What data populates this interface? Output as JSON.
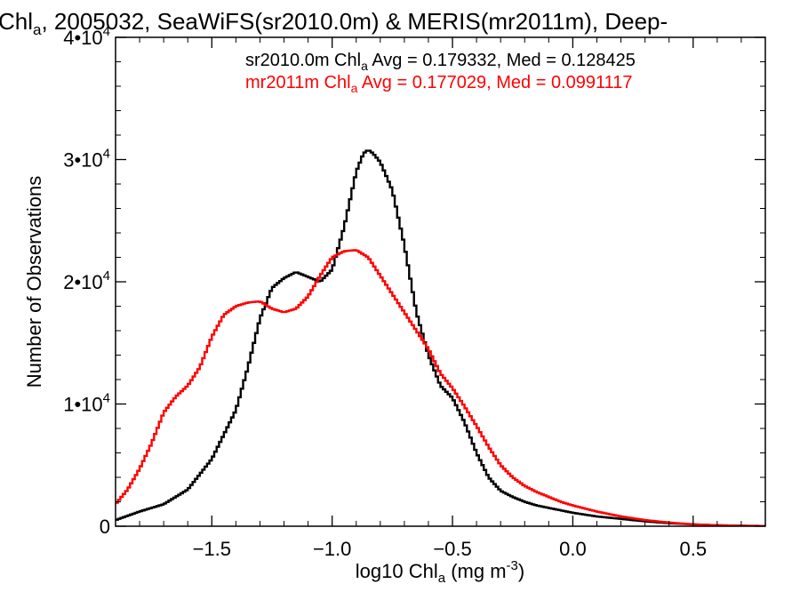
{
  "chart_data": {
    "type": "line",
    "title": {
      "pre": "Chl",
      "sub": "a",
      "post": ", 2005032, SeaWiFS(sr2010.0m) & MERIS(mr2011m), Deep-"
    },
    "xlabel": {
      "pre": "log10 Chl",
      "sub": "a",
      "post": " (mg m",
      "sup": "-3",
      "end": ")"
    },
    "ylabel": "Number of Observations",
    "xlim": [
      -1.9,
      0.8
    ],
    "ylim": [
      0,
      40000
    ],
    "x_ticks": [
      {
        "value": -1.5,
        "label": "−1.5"
      },
      {
        "value": -1.0,
        "label": "−1.0"
      },
      {
        "value": -0.5,
        "label": "−0.5"
      },
      {
        "value": 0.0,
        "label": "0.0"
      },
      {
        "value": 0.5,
        "label": "0.5"
      }
    ],
    "y_ticks": [
      {
        "value": 0,
        "mant": "0",
        "exp": ""
      },
      {
        "value": 10000,
        "mant": "1•10",
        "exp": "4"
      },
      {
        "value": 20000,
        "mant": "2•10",
        "exp": "4"
      },
      {
        "value": 30000,
        "mant": "3•10",
        "exp": "4"
      },
      {
        "value": 40000,
        "mant": "4•10",
        "exp": "4"
      }
    ],
    "grid": false,
    "step": true,
    "annotations": [
      {
        "pre": "sr2010.0m Chl",
        "sub": "a",
        "post": " Avg = 0.179332, Med = 0.128425",
        "color": "#000000"
      },
      {
        "pre": "mr2011m Chl",
        "sub": "a",
        "post": " Avg = 0.177029, Med = 0.0991117",
        "color": "#ff0000"
      }
    ],
    "series": [
      {
        "color": "#000000",
        "x": [
          -1.9,
          -1.8,
          -1.7,
          -1.6,
          -1.5,
          -1.4,
          -1.35,
          -1.3,
          -1.25,
          -1.2,
          -1.15,
          -1.1,
          -1.05,
          -1.0,
          -0.95,
          -0.9,
          -0.87,
          -0.85,
          -0.83,
          -0.8,
          -0.75,
          -0.7,
          -0.65,
          -0.6,
          -0.55,
          -0.5,
          -0.45,
          -0.4,
          -0.35,
          -0.3,
          -0.25,
          -0.2,
          -0.15,
          -0.1,
          -0.05,
          0.0,
          0.1,
          0.2,
          0.3,
          0.4,
          0.5,
          0.6,
          0.7,
          0.8
        ],
        "y": [
          500,
          1200,
          1800,
          3000,
          5500,
          9500,
          13000,
          17000,
          19500,
          20300,
          20800,
          20400,
          20000,
          21000,
          24500,
          29000,
          30500,
          30800,
          30500,
          29800,
          27500,
          23000,
          17500,
          14000,
          11500,
          10500,
          8500,
          6000,
          4000,
          2900,
          2400,
          2000,
          1700,
          1500,
          1300,
          1100,
          800,
          600,
          400,
          250,
          150,
          80,
          40,
          20
        ]
      },
      {
        "color": "#ff0000",
        "x": [
          -1.9,
          -1.85,
          -1.8,
          -1.75,
          -1.7,
          -1.65,
          -1.6,
          -1.55,
          -1.5,
          -1.45,
          -1.4,
          -1.35,
          -1.3,
          -1.25,
          -1.2,
          -1.15,
          -1.1,
          -1.05,
          -1.0,
          -0.95,
          -0.9,
          -0.85,
          -0.8,
          -0.75,
          -0.7,
          -0.65,
          -0.6,
          -0.55,
          -0.5,
          -0.45,
          -0.4,
          -0.35,
          -0.3,
          -0.25,
          -0.2,
          -0.15,
          -0.1,
          -0.05,
          0.0,
          0.1,
          0.2,
          0.3,
          0.4,
          0.5,
          0.6,
          0.7,
          0.8
        ],
        "y": [
          1800,
          3000,
          4700,
          6800,
          9300,
          10600,
          11500,
          13000,
          15500,
          17300,
          18000,
          18300,
          18400,
          17800,
          17500,
          17800,
          18800,
          20500,
          22000,
          22500,
          22600,
          22000,
          20500,
          19000,
          17500,
          16000,
          14500,
          12500,
          11300,
          9800,
          8200,
          6500,
          5000,
          4000,
          3300,
          2800,
          2400,
          2000,
          1700,
          1200,
          800,
          500,
          300,
          150,
          80,
          40,
          20
        ]
      }
    ]
  }
}
